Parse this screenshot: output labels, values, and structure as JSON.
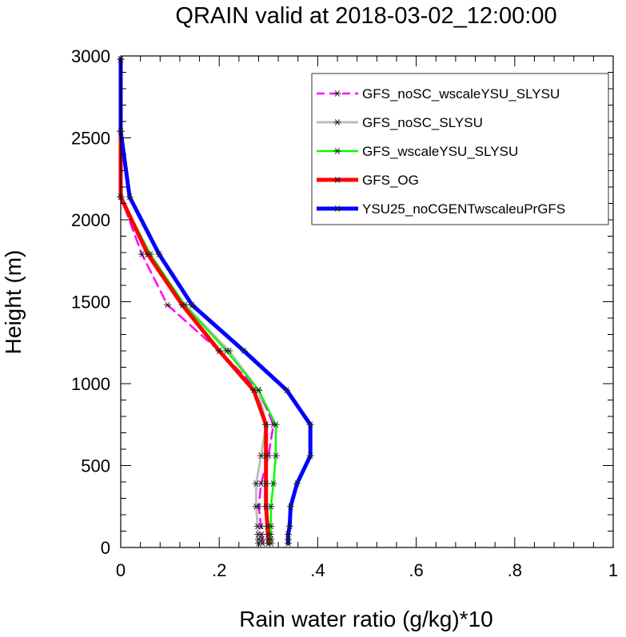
{
  "chart_data": {
    "type": "line",
    "title": "QRAIN valid at 2018-03-02_12:00:00",
    "xlabel": "Rain water ratio (g/kg)*10",
    "ylabel": "Height (m)",
    "xlim": [
      0,
      1
    ],
    "ylim": [
      0,
      3000
    ],
    "x_ticks": [
      0,
      0.2,
      0.4,
      0.6,
      0.8,
      1
    ],
    "x_tick_labels": [
      "0",
      ".2",
      ".4",
      ".6",
      ".8",
      "1"
    ],
    "y_ticks": [
      0,
      500,
      1000,
      1500,
      2000,
      2500,
      3000
    ],
    "y_tick_labels": [
      "0",
      "500",
      "1000",
      "1500",
      "2000",
      "2500",
      "3000"
    ],
    "grid": false,
    "legend_position": "top-right",
    "heights": [
      25,
      50,
      80,
      130,
      250,
      390,
      560,
      750,
      960,
      1200,
      1480,
      1790,
      2140,
      2540,
      2980
    ],
    "series": [
      {
        "name": "GFS_noSC_wscaleYSU_SLYSU",
        "color": "#ff00ff",
        "dash": true,
        "width": 2.5,
        "values": [
          0.288,
          0.287,
          0.286,
          0.285,
          0.28,
          0.285,
          0.3,
          0.31,
          0.28,
          0.2,
          0.095,
          0.043,
          0.0,
          0.0,
          0.0
        ]
      },
      {
        "name": "GFS_noSC_SLYSU",
        "color": "#bebebe",
        "dash": false,
        "width": 3,
        "values": [
          0.28,
          0.28,
          0.279,
          0.278,
          0.275,
          0.275,
          0.285,
          0.295,
          0.28,
          0.22,
          0.13,
          0.055,
          0.0,
          0.0,
          0.0
        ]
      },
      {
        "name": "GFS_wscaleYSU_SLYSU",
        "color": "#00ff00",
        "dash": false,
        "width": 2.5,
        "values": [
          0.305,
          0.305,
          0.304,
          0.305,
          0.305,
          0.31,
          0.315,
          0.315,
          0.28,
          0.215,
          0.13,
          0.06,
          0.0,
          0.0,
          0.0
        ]
      },
      {
        "name": "GFS_OG",
        "color": "#ff0000",
        "dash": false,
        "width": 5,
        "values": [
          0.3,
          0.3,
          0.299,
          0.298,
          0.295,
          0.295,
          0.295,
          0.295,
          0.27,
          0.2,
          0.125,
          0.055,
          0.0,
          0.0,
          0.0
        ]
      },
      {
        "name": "YSU25_noCGENTwscaleuPrGFS",
        "color": "#0000ff",
        "dash": false,
        "width": 5,
        "values": [
          0.34,
          0.34,
          0.34,
          0.343,
          0.345,
          0.358,
          0.385,
          0.385,
          0.337,
          0.25,
          0.145,
          0.078,
          0.018,
          0.0,
          0.0
        ]
      }
    ]
  }
}
